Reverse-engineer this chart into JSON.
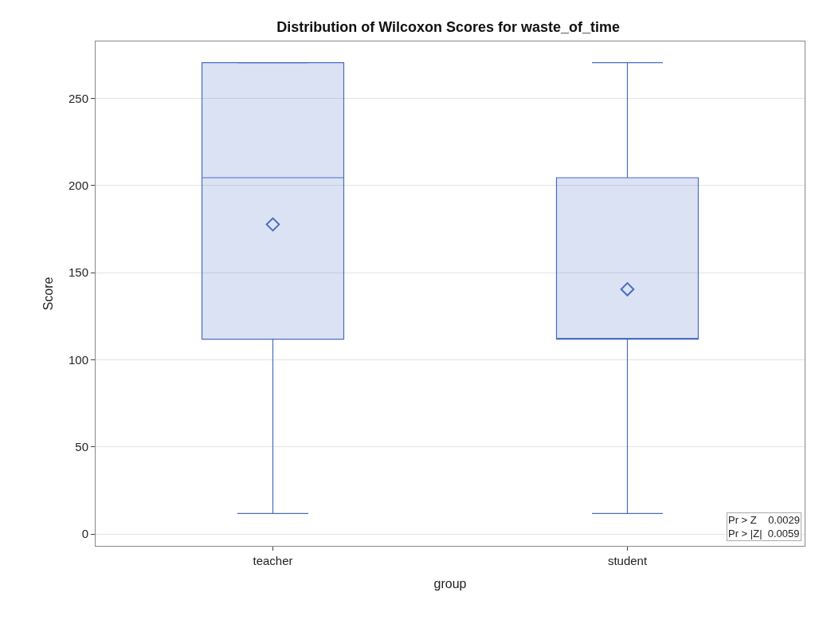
{
  "chart_data": {
    "type": "box",
    "title": "Distribution of Wilcoxon Scores for waste_of_time",
    "xlabel": "group",
    "ylabel": "Score",
    "categories": [
      "teacher",
      "student"
    ],
    "boxes": [
      {
        "low": 11.8,
        "q1": 111.8,
        "median": 204.5,
        "q3": 270.5,
        "high": 270.5,
        "mean": 177.7
      },
      {
        "low": 11.8,
        "q1": 111.8,
        "median": 111.8,
        "q3": 204.5,
        "high": 270.5,
        "mean": 140.5
      }
    ],
    "color": "#4a6cc4",
    "marker": "diamond",
    "ylim": [
      -6.8,
      282.7
    ],
    "yticks": [
      0,
      50,
      100,
      150,
      200,
      250
    ],
    "grid": "y",
    "annotations": [
      "Pr > Z    0.0029",
      "Pr > |Z|  0.0059"
    ]
  }
}
